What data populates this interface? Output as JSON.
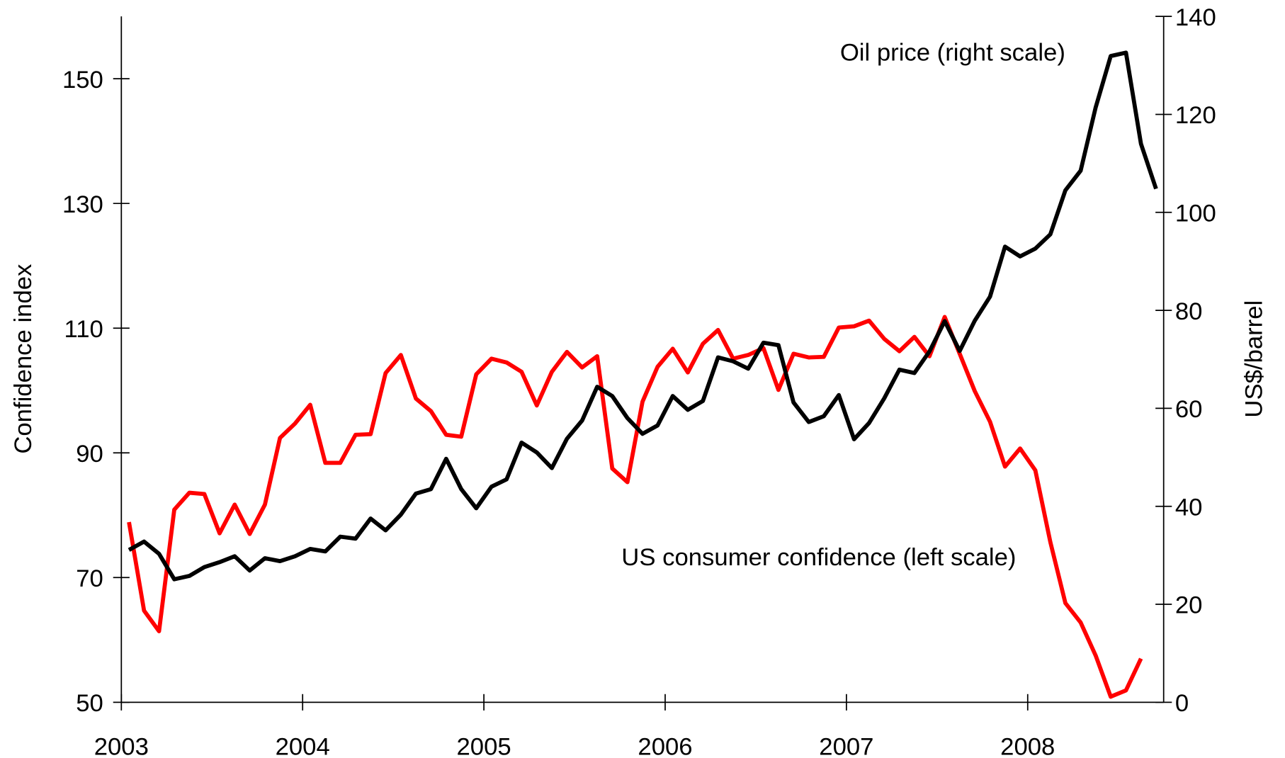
{
  "chart_data": {
    "type": "line",
    "x": [
      2003.042,
      2003.125,
      2003.208,
      2003.292,
      2003.375,
      2003.458,
      2003.542,
      2003.625,
      2003.708,
      2003.792,
      2003.875,
      2003.958,
      2004.042,
      2004.125,
      2004.208,
      2004.292,
      2004.375,
      2004.458,
      2004.542,
      2004.625,
      2004.708,
      2004.792,
      2004.875,
      2004.958,
      2005.042,
      2005.125,
      2005.208,
      2005.292,
      2005.375,
      2005.458,
      2005.542,
      2005.625,
      2005.708,
      2005.792,
      2005.875,
      2005.958,
      2006.042,
      2006.125,
      2006.208,
      2006.292,
      2006.375,
      2006.458,
      2006.542,
      2006.625,
      2006.708,
      2006.792,
      2006.875,
      2006.958,
      2007.042,
      2007.125,
      2007.208,
      2007.292,
      2007.375,
      2007.458,
      2007.542,
      2007.625,
      2007.708,
      2007.792,
      2007.875,
      2007.958,
      2008.042,
      2008.125,
      2008.208,
      2008.292,
      2008.375,
      2008.458,
      2008.542,
      2008.625,
      2008.708
    ],
    "series": [
      {
        "name": "US consumer confidence (left scale)",
        "color": "#ff0000",
        "axis": "y",
        "values": [
          78.9,
          64.7,
          61.4,
          80.9,
          83.6,
          83.4,
          77.1,
          81.7,
          77.0,
          81.7,
          92.4,
          94.7,
          97.7,
          88.4,
          88.4,
          92.9,
          93.0,
          102.8,
          105.7,
          98.7,
          96.7,
          92.9,
          92.6,
          102.6,
          105.1,
          104.5,
          103.0,
          97.6,
          103.0,
          106.2,
          103.7,
          105.5,
          87.5,
          85.3,
          98.2,
          103.8,
          106.7,
          102.9,
          107.5,
          109.7,
          105.1,
          105.7,
          106.8,
          100.1,
          105.9,
          105.3,
          105.4,
          110.1,
          110.3,
          111.2,
          108.3,
          106.3,
          108.6,
          105.5,
          111.8,
          105.9,
          99.9,
          95.0,
          87.8,
          90.7,
          87.2,
          75.7,
          65.9,
          62.8,
          57.5,
          50.9,
          51.9,
          57.0,
          null
        ]
      },
      {
        "name": "Oil price (right scale)",
        "color": "#000000",
        "axis": "y2",
        "values": [
          31.1,
          32.8,
          30.3,
          25.1,
          25.8,
          27.6,
          28.6,
          29.8,
          26.9,
          29.4,
          28.8,
          29.8,
          31.3,
          30.8,
          33.8,
          33.4,
          37.5,
          35.1,
          38.3,
          42.6,
          43.5,
          49.7,
          43.5,
          39.6,
          44.0,
          45.5,
          53.0,
          51.0,
          47.8,
          53.8,
          57.5,
          64.4,
          62.5,
          58.0,
          54.8,
          56.5,
          62.5,
          59.7,
          61.5,
          70.4,
          69.6,
          68.1,
          73.4,
          72.9,
          61.2,
          57.2,
          58.4,
          62.7,
          53.7,
          57.0,
          62.0,
          67.9,
          67.2,
          71.6,
          77.8,
          71.7,
          77.9,
          82.8,
          93.0,
          91.0,
          92.6,
          95.5,
          104.5,
          108.5,
          121.4,
          131.9,
          132.6,
          114.0,
          104.8
        ]
      }
    ],
    "xlim": [
      2003,
      2008.75
    ],
    "xticks": [
      2003,
      2004,
      2005,
      2006,
      2007,
      2008
    ],
    "ylabel": "Confidence index",
    "ylim": [
      50,
      160
    ],
    "yticks": [
      50,
      70,
      90,
      110,
      130,
      150
    ],
    "y2label": "US$/barrel",
    "y2lim": [
      0,
      140
    ],
    "y2ticks": [
      0,
      20,
      40,
      60,
      80,
      100,
      120,
      140
    ],
    "grid": false
  }
}
